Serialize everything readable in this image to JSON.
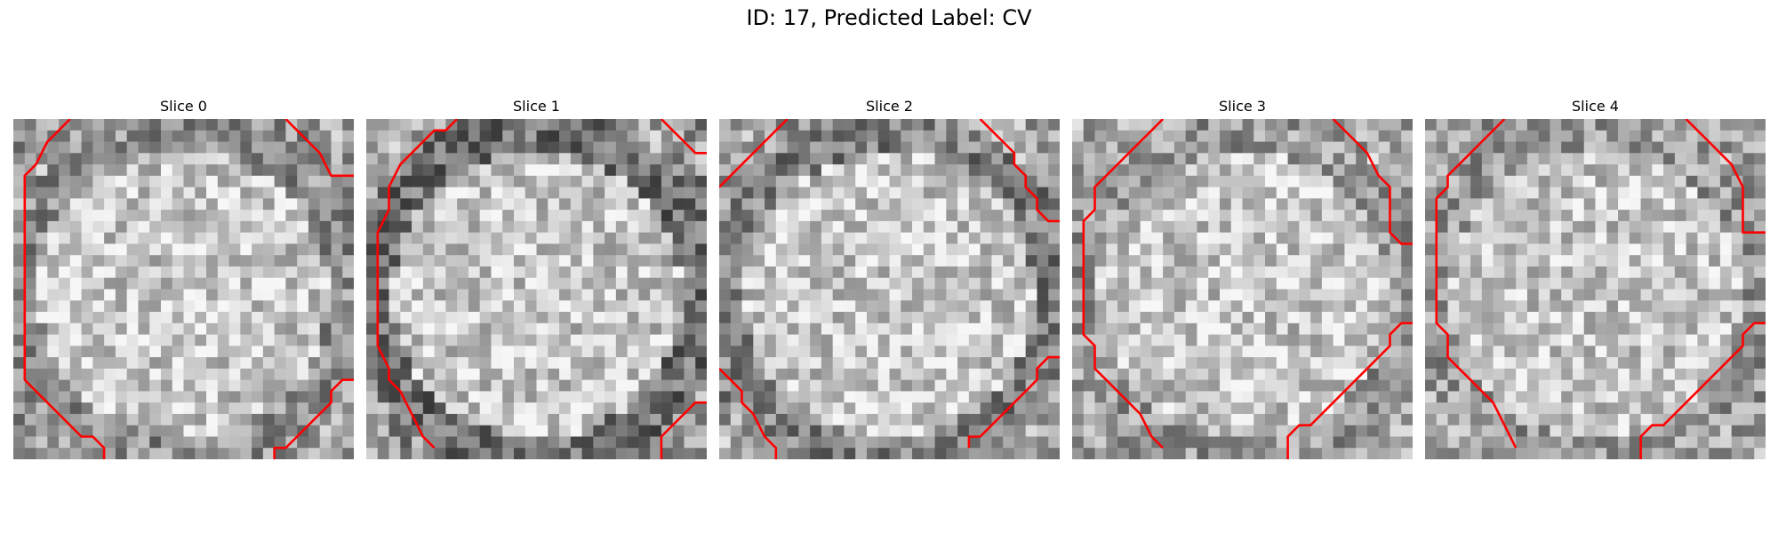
{
  "figure": {
    "title": "ID: 17, Predicted Label: CV",
    "contour_color": "#ff0000",
    "cmap": "gray"
  },
  "panels": [
    {
      "title": "Slice 0",
      "texture_seed": 11,
      "dark_ring": 0.55
    },
    {
      "title": "Slice 1",
      "texture_seed": 23,
      "dark_ring": 0.85
    },
    {
      "title": "Slice 2",
      "texture_seed": 37,
      "dark_ring": 0.7
    },
    {
      "title": "Slice 3",
      "texture_seed": 41,
      "dark_ring": 0.45
    },
    {
      "title": "Slice 4",
      "texture_seed": 53,
      "dark_ring": 0.45
    }
  ]
}
